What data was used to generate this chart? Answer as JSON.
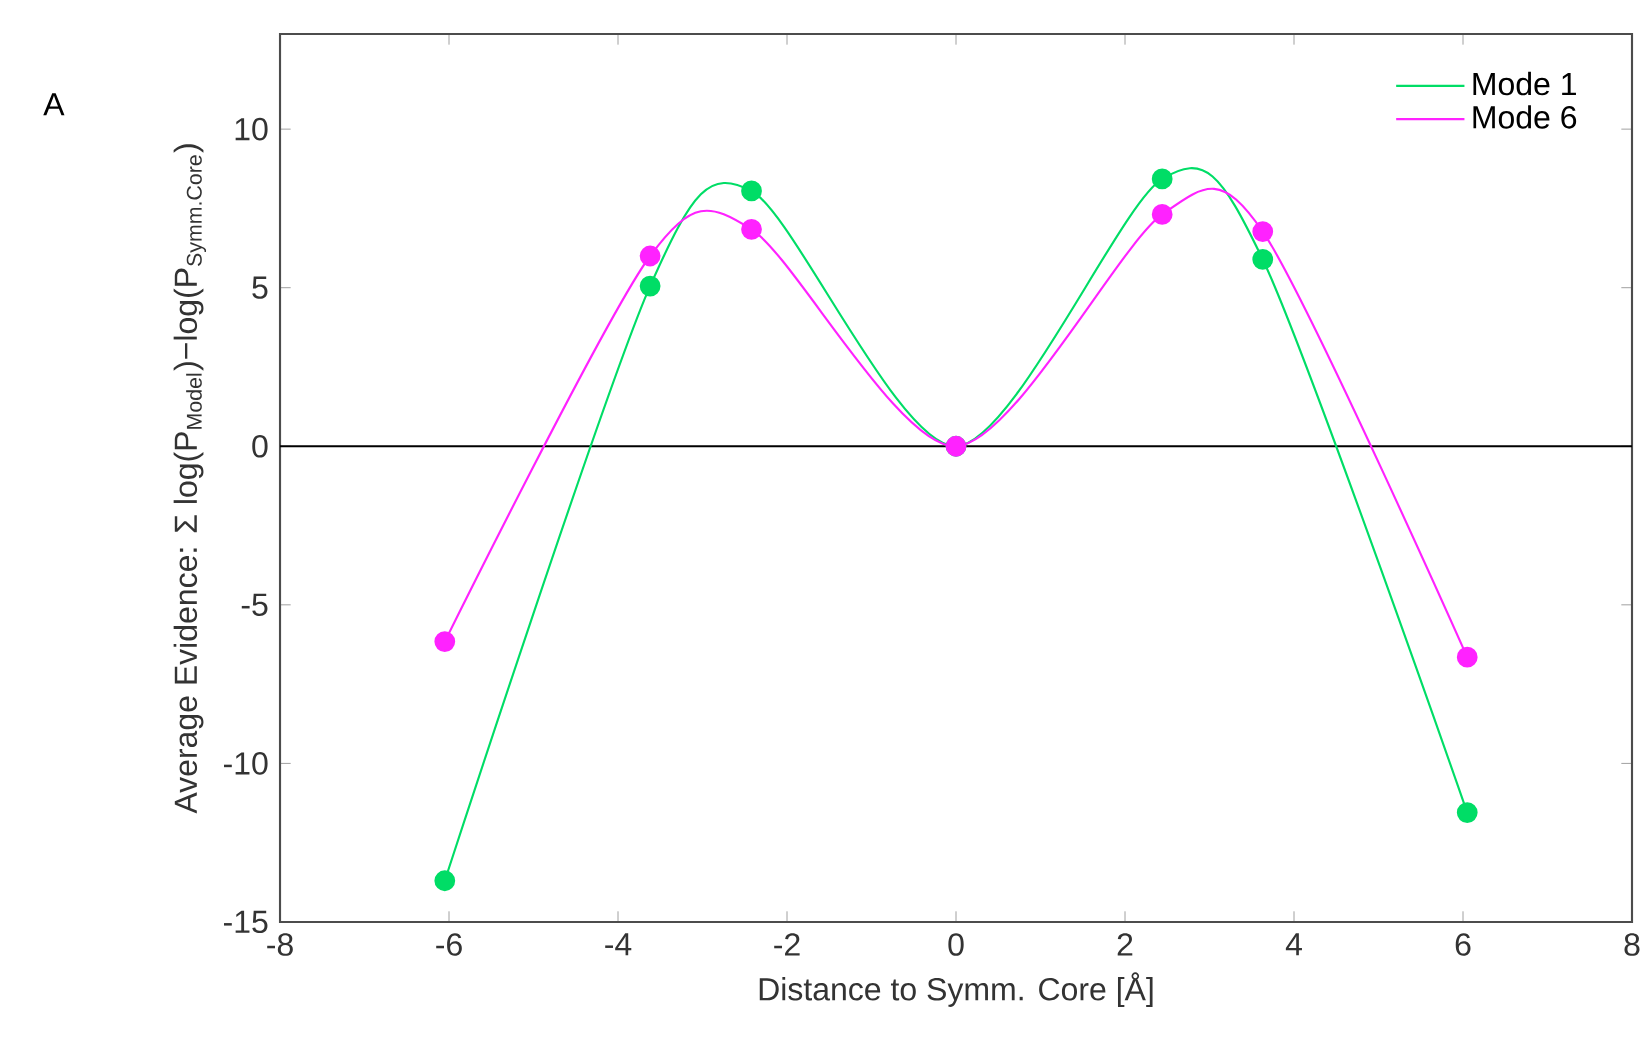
{
  "chart_data": {
    "type": "line",
    "xlabel": "Distance to Symm. Core  [Å]",
    "ylabel": "Average Evidence: Σ log(P$_{Model}$)−log(P$_{Symm.Core}$)",
    "annotations": [
      "A"
    ],
    "x": [
      -6.05,
      -3.62,
      -2.42,
      0,
      2.44,
      3.63,
      6.05
    ],
    "series": [
      {
        "name": "Mode 1",
        "color": "#00dd66",
        "values": [
          -13.7,
          5.05,
          8.05,
          0,
          8.43,
          5.89,
          -11.55
        ]
      },
      {
        "name": "Mode 6",
        "color": "#ff22ff",
        "values": [
          -6.16,
          6.0,
          6.84,
          0,
          7.31,
          6.77,
          -6.65
        ]
      }
    ],
    "xlim": [
      -8,
      8
    ],
    "ylim": [
      -15,
      13
    ],
    "xticks": [
      -8,
      -6,
      -4,
      -2,
      0,
      2,
      4,
      6,
      8
    ],
    "yticks": [
      -15,
      -10,
      -5,
      0,
      5,
      10
    ],
    "ref_lines": [
      {
        "axis": "y",
        "value": 0,
        "color": "#000000"
      }
    ],
    "legend": "top right",
    "marker": "circle",
    "line_style": "solid",
    "grid": false
  }
}
